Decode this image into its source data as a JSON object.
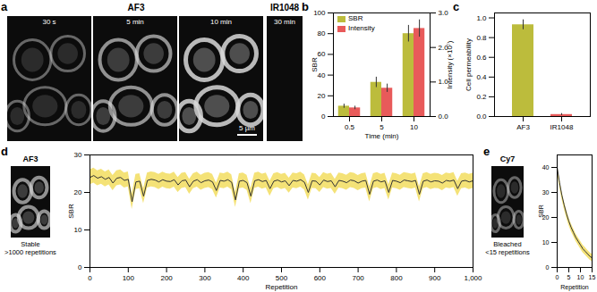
{
  "images": {
    "a": {
      "panel": "a",
      "group_title": "AF3",
      "frames": [
        "30 s",
        "5 min",
        "10 min"
      ],
      "control_title": "IR1048",
      "control_frame": "30 min",
      "scale_bar": "5 µm"
    },
    "d": {
      "title": "AF3",
      "caption": [
        "Stable",
        ">1000 repetitions"
      ]
    },
    "e": {
      "title": "Cy7",
      "caption": [
        "Bleached",
        "<15 repetitions"
      ]
    }
  },
  "chart_data": [
    {
      "panel": "b",
      "type": "bar",
      "categories": [
        "0.5",
        "5",
        "10"
      ],
      "xlabel": "Time (min)",
      "ylabel": "SBR",
      "y2label": "Intensity (×10⁷)",
      "ylim": [
        0,
        100
      ],
      "yticks": [
        0,
        20,
        40,
        60,
        80,
        100
      ],
      "y2lim": [
        0,
        3
      ],
      "y2ticks": [
        0,
        1,
        2,
        3
      ],
      "legend": "top-left",
      "series": [
        {
          "name": "SBR",
          "color": "#bcbc3c",
          "values": [
            10,
            33,
            80
          ],
          "errors": [
            2,
            5,
            8
          ]
        },
        {
          "name": "Intensity",
          "color": "#e85a5a",
          "axis": "y2",
          "values": [
            0.25,
            0.82,
            2.55
          ],
          "errors": [
            0.05,
            0.12,
            0.25
          ]
        }
      ]
    },
    {
      "panel": "c",
      "type": "bar",
      "categories": [
        "AF3",
        "IR1048"
      ],
      "ylabel": "Cell permeability",
      "ylim": [
        0,
        1.05
      ],
      "yticks": [
        {
          "value": 0,
          "label": "0.0"
        },
        {
          "value": 0.2,
          "label": "0.2"
        },
        {
          "value": 0.4,
          "label": "0.4"
        },
        {
          "value": 0.6,
          "label": "0.6"
        },
        {
          "value": 0.8,
          "label": "0.8"
        },
        {
          "value": 1,
          "label": "1.0"
        }
      ],
      "colors": [
        "#bcbc3c",
        "#e85a5a"
      ],
      "values": [
        0.93,
        0.02
      ],
      "errors": [
        0.05,
        0.01
      ]
    },
    {
      "panel": "d",
      "type": "line",
      "xlabel": "Repetition",
      "ylabel": "SBR",
      "xlim": [
        0,
        1000
      ],
      "xticks": [
        0,
        100,
        200,
        300,
        400,
        500,
        600,
        700,
        800,
        900,
        1000
      ],
      "ylim": [
        0,
        30
      ],
      "yticks": [
        0,
        10,
        20,
        30
      ],
      "color": "#333333",
      "error": 2,
      "x": [
        0,
        10,
        20,
        30,
        40,
        50,
        60,
        70,
        80,
        90,
        100,
        110,
        120,
        130,
        140,
        150,
        160,
        170,
        180,
        190,
        200,
        210,
        220,
        230,
        240,
        250,
        260,
        270,
        280,
        290,
        300,
        310,
        320,
        330,
        340,
        350,
        360,
        370,
        380,
        390,
        400,
        410,
        420,
        430,
        440,
        450,
        460,
        470,
        480,
        490,
        500,
        510,
        520,
        530,
        540,
        550,
        560,
        570,
        580,
        590,
        600,
        610,
        620,
        630,
        640,
        650,
        660,
        670,
        680,
        690,
        700,
        710,
        720,
        730,
        740,
        750,
        760,
        770,
        780,
        790,
        800,
        810,
        820,
        830,
        840,
        850,
        860,
        870,
        880,
        890,
        900,
        910,
        920,
        930,
        940,
        950,
        960,
        970,
        980,
        990,
        1000
      ],
      "values": [
        24,
        24.5,
        23.8,
        24.2,
        23.5,
        24,
        22.5,
        23.8,
        24,
        23.2,
        23.5,
        17.5,
        22.8,
        23,
        19,
        23.2,
        23.5,
        23.3,
        22.8,
        23.4,
        23,
        22.9,
        23.4,
        22,
        23.1,
        23.3,
        21.5,
        23,
        23.4,
        22.6,
        23.1,
        23.3,
        22.8,
        20.5,
        23.2,
        23,
        23.4,
        22.7,
        18,
        23,
        23.2,
        22.6,
        19,
        23.1,
        23.4,
        22.9,
        23.2,
        21,
        23,
        23.3,
        22.8,
        23.1,
        21.8,
        23.2,
        23,
        23.4,
        22.7,
        20,
        23.1,
        23,
        22,
        23.3,
        22.9,
        23.1,
        21.5,
        23.2,
        23,
        22.6,
        23.3,
        23.1,
        22.5,
        23,
        23.2,
        19.5,
        23,
        23.3,
        22.8,
        23.1,
        20,
        23.2,
        23,
        22.6,
        23.3,
        23.1,
        22.9,
        23.2,
        19.5,
        23,
        23.3,
        22.8,
        23.1,
        23,
        22.5,
        23.2,
        23,
        23.3,
        21,
        23,
        23.2,
        22.8,
        23.1
      ]
    },
    {
      "panel": "e",
      "type": "line",
      "xlabel": "Repetition",
      "ylabel": "SBR",
      "xlim": [
        0,
        15
      ],
      "xticks": [
        0,
        5,
        10,
        15
      ],
      "ylim": [
        0,
        45
      ],
      "yticks": [
        0,
        10,
        20,
        30,
        40
      ],
      "color": "#333333",
      "error": 1.5,
      "x": [
        0,
        1,
        2,
        3,
        4,
        5,
        6,
        7,
        8,
        9,
        10,
        11,
        12,
        13,
        14,
        15
      ],
      "values": [
        40,
        34,
        29,
        25,
        21.5,
        18.5,
        16,
        14,
        12,
        10.5,
        9,
        7.5,
        6.5,
        5.5,
        4.5,
        3.8
      ]
    }
  ]
}
